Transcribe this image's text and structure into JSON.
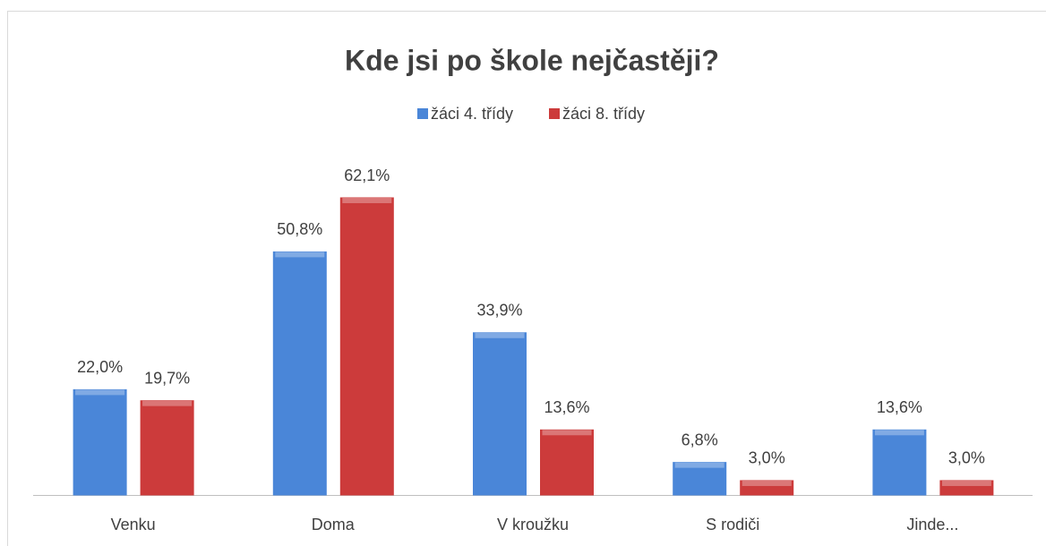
{
  "chart_data": {
    "type": "bar",
    "title": "Kde jsi po škole nejčastěji?",
    "categories": [
      "Venku",
      "Doma",
      "V kroužku",
      "S rodiči",
      "Jinde..."
    ],
    "series": [
      {
        "name": "žáci 4. třídy",
        "color": "#4a86d8",
        "values": [
          22.0,
          50.8,
          33.9,
          6.8,
          13.6
        ],
        "value_labels": [
          "22,0%",
          "50,8%",
          "33,9%",
          "6,8%",
          "13,6%"
        ]
      },
      {
        "name": "žáci 8. třídy",
        "color": "#cc3b3b",
        "values": [
          19.7,
          62.1,
          13.6,
          3.0,
          3.0
        ],
        "value_labels": [
          "19,7%",
          "62,1%",
          "13,6%",
          "3,0%",
          "3,0%"
        ]
      }
    ],
    "legend": "top"
  }
}
